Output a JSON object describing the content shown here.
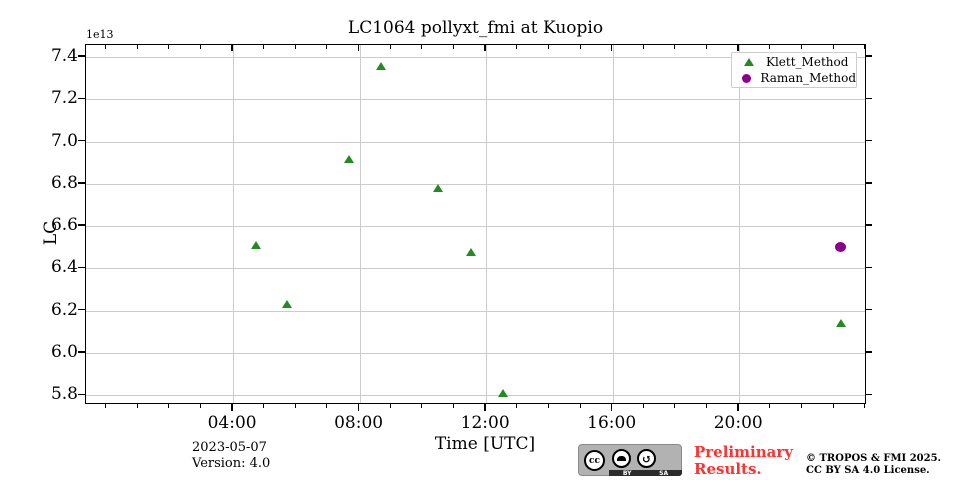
{
  "chart_data": {
    "type": "scatter",
    "title": "LC1064 pollyxt_fmi at Kuopio",
    "xlabel": "Time [UTC]",
    "ylabel": "LC",
    "y_offset_label": "1e13",
    "grid": true,
    "legend_position": "upper-right",
    "xlim_hours": [
      -0.65,
      24.04
    ],
    "ylim": [
      5.754,
      7.457
    ],
    "x_ticks": [
      {
        "hour": 4,
        "label": "04:00"
      },
      {
        "hour": 8,
        "label": "08:00"
      },
      {
        "hour": 12,
        "label": "12:00"
      },
      {
        "hour": 16,
        "label": "16:00"
      },
      {
        "hour": 20,
        "label": "20:00"
      }
    ],
    "x_minor_tick_every_hours": 1,
    "y_ticks": [
      {
        "value": 5.8,
        "label": "5.8"
      },
      {
        "value": 6.0,
        "label": "6.0"
      },
      {
        "value": 6.2,
        "label": "6.2"
      },
      {
        "value": 6.4,
        "label": "6.4"
      },
      {
        "value": 6.6,
        "label": "6.6"
      },
      {
        "value": 6.8,
        "label": "6.8"
      },
      {
        "value": 7.0,
        "label": "7.0"
      },
      {
        "value": 7.2,
        "label": "7.2"
      },
      {
        "value": 7.4,
        "label": "7.4"
      }
    ],
    "series": [
      {
        "name": "Klett_Method",
        "marker": "triangle",
        "color": "#228B22",
        "points": [
          {
            "hour": 4.73,
            "value": 6.51
          },
          {
            "hour": 5.69,
            "value": 6.23
          },
          {
            "hour": 7.66,
            "value": 6.92
          },
          {
            "hour": 8.68,
            "value": 7.36
          },
          {
            "hour": 10.49,
            "value": 6.78
          },
          {
            "hour": 11.53,
            "value": 6.48
          },
          {
            "hour": 12.53,
            "value": 5.81
          },
          {
            "hour": 23.21,
            "value": 6.14
          }
        ]
      },
      {
        "name": "Raman_Method",
        "marker": "circle",
        "color": "#8B008B",
        "points": [
          {
            "hour": 23.21,
            "value": 6.5
          }
        ]
      }
    ]
  },
  "footer": {
    "date": "2023-05-07",
    "version": "Version: 4.0",
    "preliminary_line1": "Preliminary",
    "preliminary_line2": "Results.",
    "preliminary_color": "#ff3232",
    "copyright_line1": "© TROPOS & FMI 2025.",
    "copyright_line2": "CC BY SA 4.0 License.",
    "cc_badge": {
      "cc_label": "cc",
      "by_label": "BY",
      "sa_label": "SA",
      "sa_symbol": "↺"
    }
  }
}
